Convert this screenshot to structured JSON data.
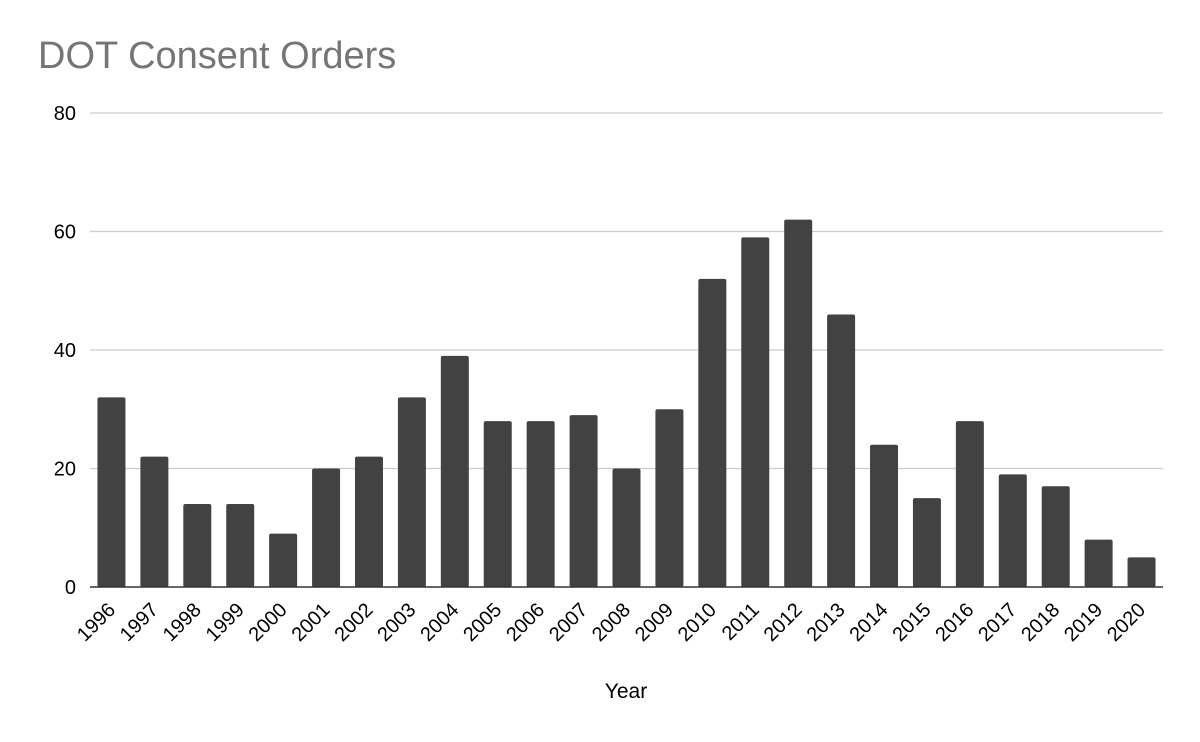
{
  "chart_data": {
    "type": "bar",
    "title": "DOT Consent Orders",
    "xlabel": "Year",
    "ylabel": "",
    "ylim": [
      0,
      80
    ],
    "yticks": [
      0,
      20,
      40,
      60,
      80
    ],
    "grid": true,
    "legend": "none",
    "categories": [
      "1996",
      "1997",
      "1998",
      "1999",
      "2000",
      "2001",
      "2002",
      "2003",
      "2004",
      "2005",
      "2006",
      "2007",
      "2008",
      "2009",
      "2010",
      "2011",
      "2012",
      "2013",
      "2014",
      "2015",
      "2016",
      "2017",
      "2018",
      "2019",
      "2020"
    ],
    "values": [
      32,
      22,
      14,
      14,
      9,
      20,
      22,
      32,
      39,
      28,
      28,
      29,
      20,
      30,
      52,
      59,
      62,
      46,
      24,
      15,
      28,
      19,
      17,
      8,
      5
    ],
    "colors": {
      "bar": "#424242",
      "grid": "#cccccc",
      "axis": "#333333",
      "title": "#757575"
    }
  }
}
